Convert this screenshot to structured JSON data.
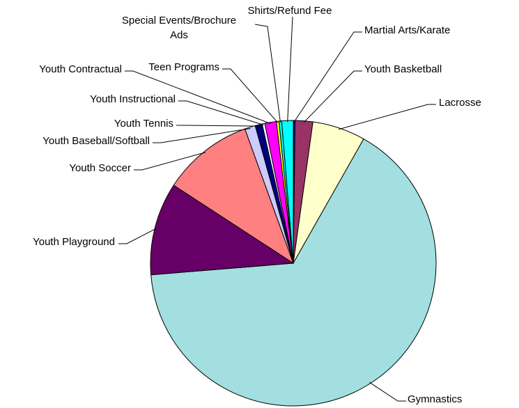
{
  "chart_data": {
    "type": "pie",
    "categories": [
      "Martial Arts/Karate",
      "Youth Basketball",
      "Lacrosse",
      "Gymnastics",
      "Youth Playground",
      "Youth Soccer",
      "Youth Baseball/Softball",
      "Youth Tennis",
      "Youth Instructional",
      "Youth Contractual",
      "Teen Programs",
      "Special Events/Brochure Ads",
      "Shirts/Refund Fee"
    ],
    "values": [
      0.2,
      2.0,
      6.0,
      65.5,
      10.5,
      10.3,
      1.2,
      0.8,
      0.3,
      1.3,
      0.3,
      0.3,
      1.3
    ],
    "colors": [
      "#000080",
      "#993366",
      "#FFFFCC",
      "#A3DFE0",
      "#660066",
      "#FF8080",
      "#CCCCFF",
      "#000080",
      "#FFFFFF",
      "#FF00FF",
      "#FFFF00",
      "#00FFFF",
      "#00FFFF"
    ]
  }
}
